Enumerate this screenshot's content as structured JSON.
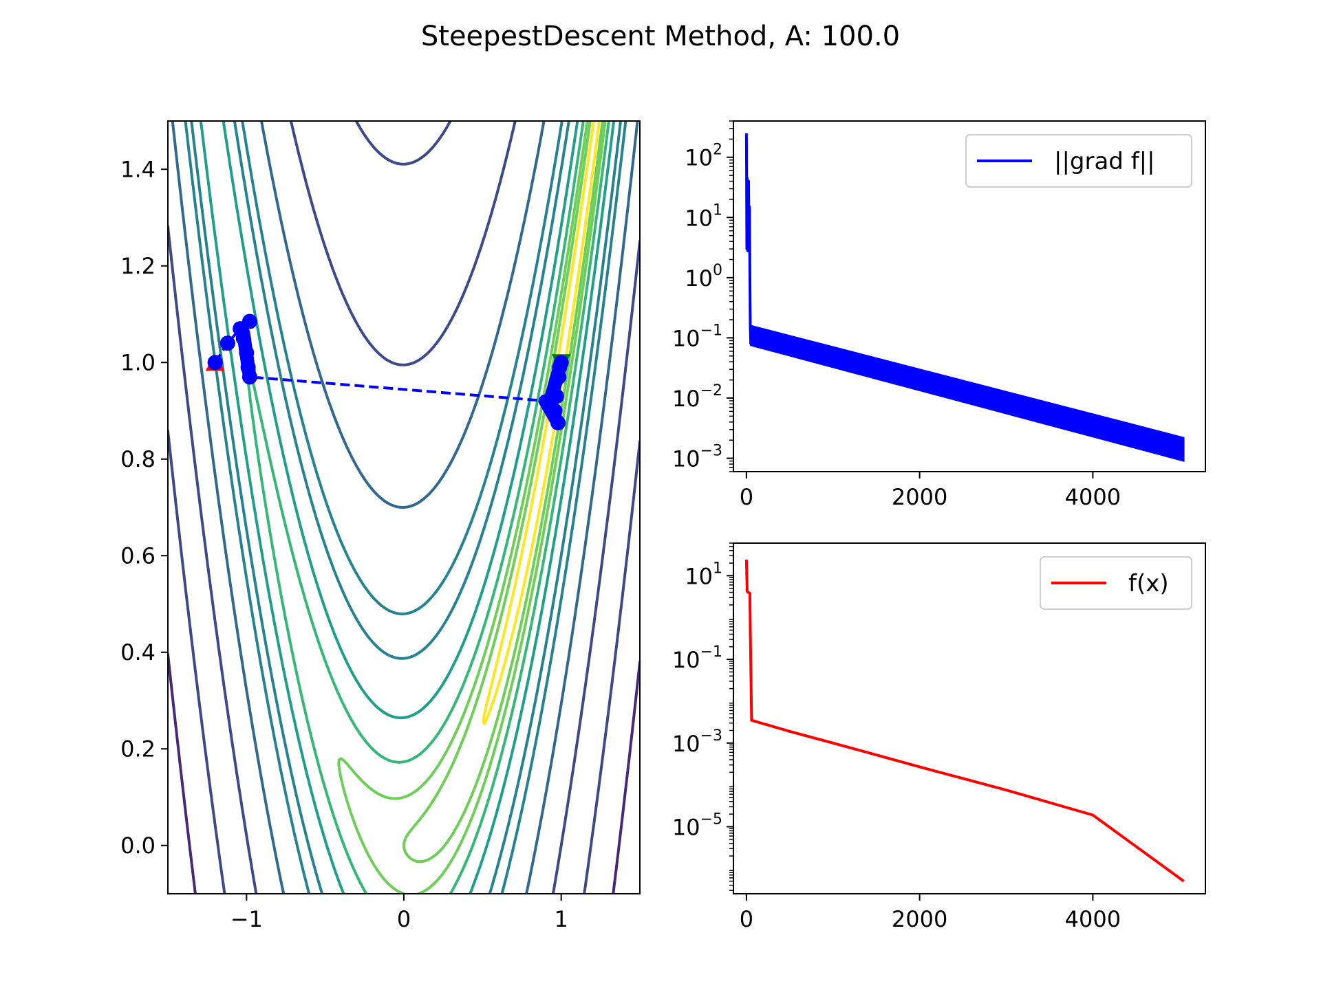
{
  "figure": {
    "title": "SteepestDescent Method, A: 100.0"
  },
  "chart_data": [
    {
      "type": "contour",
      "function": "Rosenbrock-like, A = 100",
      "xlim": [
        -1.5,
        1.5
      ],
      "ylim": [
        -0.1,
        1.5
      ],
      "x_ticks": [
        -1,
        0,
        1
      ],
      "x_tick_labels": [
        "−1",
        "0",
        "1"
      ],
      "y_ticks": [
        0.0,
        0.2,
        0.4,
        0.6,
        0.8,
        1.0,
        1.2,
        1.4
      ],
      "y_tick_labels": [
        "0.0",
        "0.2",
        "0.4",
        "0.6",
        "0.8",
        "1.0",
        "1.2",
        "1.4"
      ],
      "contour_levels": [
        0.25,
        1,
        2,
        4,
        8,
        16,
        24,
        50,
        100,
        200,
        350,
        600,
        900
      ],
      "colormap": [
        "#fde725",
        "#b5de2b",
        "#6ece58",
        "#35b779",
        "#1f9e89",
        "#26828e",
        "#31688e",
        "#3e4989",
        "#482878",
        "#440154"
      ],
      "start_marker": {
        "x": -1.2,
        "y": 1.0,
        "color": "#ff0000",
        "shape": "triangle-up"
      },
      "end_marker": {
        "x": 1.0,
        "y": 1.0,
        "color": "#008000",
        "shape": "triangle-down"
      },
      "path_color": "#0000ff",
      "path": [
        {
          "x": -1.2,
          "y": 1.0
        },
        {
          "x": -1.12,
          "y": 1.04
        },
        {
          "x": -1.04,
          "y": 1.07
        },
        {
          "x": -0.98,
          "y": 1.085
        },
        {
          "x": -1.02,
          "y": 1.05
        },
        {
          "x": -1.0,
          "y": 1.02
        },
        {
          "x": -0.99,
          "y": 0.99
        },
        {
          "x": -0.98,
          "y": 0.97
        },
        {
          "x": 0.92,
          "y": 0.92
        },
        {
          "x": 0.96,
          "y": 0.9
        },
        {
          "x": 0.98,
          "y": 0.875
        },
        {
          "x": 0.97,
          "y": 0.93
        },
        {
          "x": 0.985,
          "y": 0.97
        },
        {
          "x": 0.99,
          "y": 0.99
        },
        {
          "x": 1.0,
          "y": 1.0
        }
      ],
      "grid": false
    },
    {
      "type": "line",
      "yscale": "log",
      "xlim": [
        -150,
        5300
      ],
      "ylim": [
        0.0006,
        400
      ],
      "x_ticks": [
        0,
        2000,
        4000
      ],
      "y_ticks": [
        0.001,
        0.01,
        0.1,
        1,
        10,
        100
      ],
      "y_tick_exponents": [
        "−3",
        "−2",
        "−1",
        "0",
        "1",
        "2"
      ],
      "legend_position": "upper-right",
      "series": [
        {
          "name": "||grad f||",
          "color": "#0000ff",
          "x": [
            0,
            5,
            10,
            15,
            20,
            25,
            30,
            35,
            40,
            45,
            50,
            60,
            5050
          ],
          "y": [
            250,
            3,
            45,
            2.8,
            8,
            40,
            3,
            15,
            1.2,
            0.15,
            0.08,
            0.1,
            0.0015
          ],
          "band_upper": [
            [
              50,
              0.16
            ],
            [
              5050,
              0.0022
            ]
          ],
          "band_lower": [
            [
              50,
              0.075
            ],
            [
              5050,
              0.0009
            ]
          ]
        }
      ],
      "grid": false
    },
    {
      "type": "line",
      "yscale": "log",
      "xlim": [
        -150,
        5300
      ],
      "ylim": [
        2.5e-07,
        60
      ],
      "x_ticks": [
        0,
        2000,
        4000
      ],
      "y_ticks": [
        1e-05,
        0.001,
        0.1,
        10
      ],
      "y_tick_exponents": [
        "−5",
        "−3",
        "−1",
        "1"
      ],
      "legend_position": "upper-right",
      "series": [
        {
          "name": "f(x)",
          "color": "#ff0000",
          "x": [
            0,
            8,
            12,
            20,
            30,
            40,
            45,
            60,
            500,
            1000,
            2000,
            3000,
            4000,
            5050
          ],
          "y": [
            24,
            4.3,
            4.1,
            4.0,
            3.9,
            3.8,
            0.5,
            0.0035,
            0.0019,
            0.001,
            0.00027,
            7.5e-05,
            1.9e-05,
            5e-07
          ]
        }
      ],
      "grid": false
    }
  ]
}
